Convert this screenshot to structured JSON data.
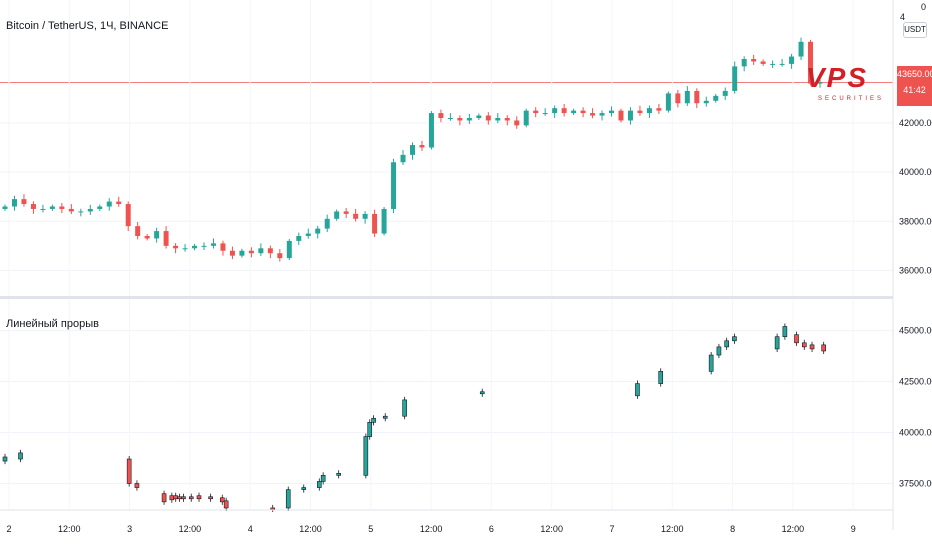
{
  "header": {
    "title": "Bitcoin / TetherUS, 1Ч, BINANCE",
    "currency_badge": "USDT",
    "top_value": "0",
    "top_value_partial": "4"
  },
  "price_tag": {
    "price": "43650.00",
    "countdown": "41:42"
  },
  "logo": {
    "text": "VPS",
    "subtitle": "SECURITIES"
  },
  "indicator": {
    "title": "Линейный прорыв"
  },
  "colors": {
    "up": "#26a69a",
    "down": "#ef5350",
    "grid": "#f0f3fa",
    "price_line": "#ef5350",
    "axis_text": "#131722"
  },
  "chart_data": [
    {
      "type": "candlestick",
      "title": "Bitcoin / TetherUS, 1Ч, BINANCE",
      "ylim": [
        35000,
        47000
      ],
      "yticks": [
        "36000.00",
        "38000.00",
        "40000.00",
        "42000.00",
        "43650.00"
      ],
      "x_ticks": [
        "2",
        "12:00",
        "3",
        "12:00",
        "4",
        "12:00",
        "5",
        "12:00",
        "6",
        "12:00",
        "7",
        "12:00",
        "8",
        "12:00",
        "9"
      ],
      "last_price": 43650,
      "close_path": [
        38600,
        38900,
        38700,
        38500,
        38500,
        38600,
        38500,
        38400,
        38400,
        38500,
        38600,
        38800,
        38700,
        37800,
        37400,
        37300,
        37600,
        37000,
        36900,
        36900,
        37000,
        37000,
        37100,
        36800,
        36600,
        36800,
        36700,
        36900,
        36700,
        36500,
        37200,
        37400,
        37500,
        37700,
        38100,
        38400,
        38300,
        38100,
        38300,
        37500,
        38500,
        40400,
        40700,
        41100,
        41000,
        42400,
        42200,
        42200,
        42100,
        42200,
        42300,
        42100,
        42200,
        42100,
        41900,
        42500,
        42400,
        42400,
        42600,
        42400,
        42500,
        42400,
        42300,
        42400,
        42500,
        42100,
        42500,
        42400,
        42600,
        42500,
        43200,
        42800,
        43300,
        42800,
        42900,
        43100,
        43300,
        44300,
        44600,
        44500,
        44400,
        44400,
        44400,
        44700,
        45300,
        43600,
        43650
      ]
    },
    {
      "type": "candlestick",
      "title": "Линейный прорыв",
      "ylim": [
        36200,
        46500
      ],
      "yticks": [
        "37500.00",
        "40000.00",
        "42500.00",
        "45000.00"
      ],
      "bricks": [
        {
          "i": 0,
          "o": 38600,
          "c": 38800,
          "d": "up"
        },
        {
          "i": 4,
          "o": 38700,
          "c": 39000,
          "d": "up"
        },
        {
          "i": 32,
          "o": 38700,
          "c": 37500,
          "d": "down"
        },
        {
          "i": 34,
          "o": 37500,
          "c": 37300,
          "d": "down"
        },
        {
          "i": 41,
          "o": 37000,
          "c": 36600,
          "d": "down"
        },
        {
          "i": 43,
          "o": 36900,
          "c": 36700,
          "d": "down"
        },
        {
          "i": 44,
          "o": 36900,
          "c": 36750,
          "d": "down"
        },
        {
          "i": 45,
          "o": 36850,
          "c": 36750,
          "d": "down"
        },
        {
          "i": 46,
          "o": 36850,
          "c": 36750,
          "d": "down"
        },
        {
          "i": 48,
          "o": 36850,
          "c": 36750,
          "d": "down"
        },
        {
          "i": 50,
          "o": 36900,
          "c": 36750,
          "d": "down"
        },
        {
          "i": 53,
          "o": 36850,
          "c": 36750,
          "d": "down"
        },
        {
          "i": 56,
          "o": 36800,
          "c": 36600,
          "d": "down"
        },
        {
          "i": 57,
          "o": 36650,
          "c": 36300,
          "d": "down"
        },
        {
          "i": 69,
          "o": 36300,
          "c": 36250,
          "d": "down"
        },
        {
          "i": 73,
          "o": 36300,
          "c": 37200,
          "d": "up"
        },
        {
          "i": 77,
          "o": 37200,
          "c": 37300,
          "d": "up"
        },
        {
          "i": 81,
          "o": 37300,
          "c": 37600,
          "d": "up"
        },
        {
          "i": 82,
          "o": 37600,
          "c": 37900,
          "d": "up"
        },
        {
          "i": 86,
          "o": 37900,
          "c": 38000,
          "d": "up"
        },
        {
          "i": 93,
          "o": 37900,
          "c": 39800,
          "d": "up"
        },
        {
          "i": 94,
          "o": 39800,
          "c": 40500,
          "d": "up"
        },
        {
          "i": 95,
          "o": 40500,
          "c": 40700,
          "d": "up"
        },
        {
          "i": 98,
          "o": 40700,
          "c": 40800,
          "d": "up"
        },
        {
          "i": 103,
          "o": 40800,
          "c": 41600,
          "d": "up"
        },
        {
          "i": 123,
          "o": 41900,
          "c": 42000,
          "d": "up"
        },
        {
          "i": 163,
          "o": 41800,
          "c": 42400,
          "d": "up"
        },
        {
          "i": 169,
          "o": 42400,
          "c": 43000,
          "d": "up"
        },
        {
          "i": 182,
          "o": 43000,
          "c": 43800,
          "d": "up"
        },
        {
          "i": 184,
          "o": 43800,
          "c": 44200,
          "d": "up"
        },
        {
          "i": 186,
          "o": 44200,
          "c": 44500,
          "d": "up"
        },
        {
          "i": 188,
          "o": 44500,
          "c": 44700,
          "d": "up"
        },
        {
          "i": 199,
          "o": 44100,
          "c": 44700,
          "d": "up"
        },
        {
          "i": 201,
          "o": 44700,
          "c": 45200,
          "d": "up"
        },
        {
          "i": 204,
          "o": 44800,
          "c": 44400,
          "d": "down"
        },
        {
          "i": 206,
          "o": 44400,
          "c": 44200,
          "d": "down"
        },
        {
          "i": 208,
          "o": 44300,
          "c": 44100,
          "d": "down"
        },
        {
          "i": 211,
          "o": 44300,
          "c": 44000,
          "d": "down"
        }
      ]
    }
  ]
}
